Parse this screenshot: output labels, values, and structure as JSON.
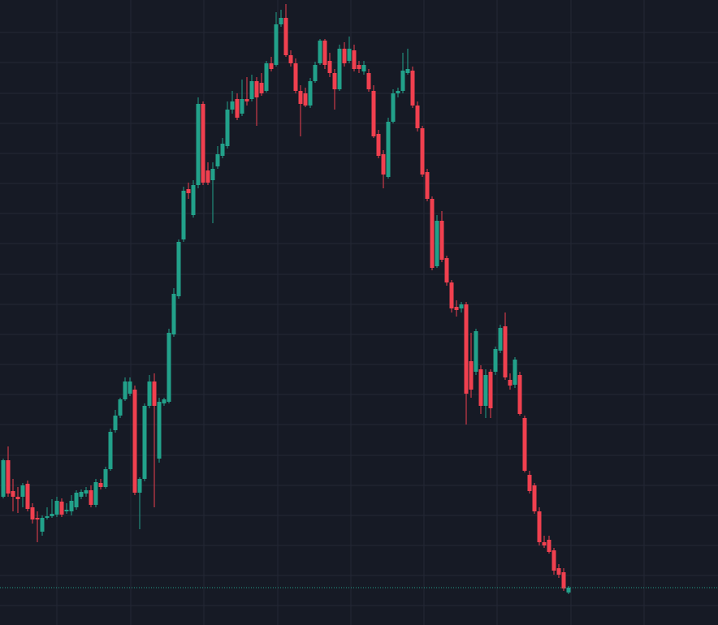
{
  "chart_data": {
    "type": "candlestick",
    "background": "#161a25",
    "grid_color": "#242835",
    "up_color": "#22a18a",
    "down_color": "#f0404f",
    "price_line_color": "#22a18a",
    "xlim": [
      0,
      884
    ],
    "ylim": [
      0,
      770
    ],
    "xticks": [
      70,
      161,
      251,
      342,
      432,
      522,
      612,
      703,
      793
    ],
    "yticks": [
      730,
      693,
      655,
      618,
      581,
      544,
      507,
      470,
      432,
      395,
      358,
      321,
      284,
      247,
      209,
      172,
      135,
      98,
      61,
      24
    ],
    "grid": true,
    "last_price": 46,
    "x": [
      4,
      10,
      16,
      22,
      28,
      34,
      40,
      46,
      52,
      58,
      64,
      70,
      76,
      82,
      88,
      94,
      100,
      106,
      112,
      118,
      124,
      130,
      136,
      142,
      148,
      154,
      160,
      166,
      172,
      178,
      184,
      190,
      196,
      202,
      208,
      214,
      220,
      226,
      232,
      238,
      244,
      250,
      256,
      262,
      268,
      274,
      280,
      286,
      292,
      298,
      304,
      310,
      316,
      322,
      328,
      334,
      340,
      346,
      352,
      358,
      364,
      370,
      376,
      382,
      388,
      394,
      400,
      406,
      412,
      418,
      424,
      430,
      436,
      442,
      448,
      454,
      460,
      466,
      472,
      478,
      484,
      490,
      496,
      502,
      508,
      514,
      520,
      526,
      532,
      538,
      544,
      550,
      556,
      562,
      568,
      574,
      580,
      586,
      592,
      598,
      604,
      610,
      616,
      622,
      628,
      634,
      640,
      646,
      652,
      658,
      664,
      670,
      676,
      682,
      688,
      694,
      700
    ],
    "open": [
      158,
      203,
      165,
      158,
      158,
      174,
      145,
      132,
      115,
      132,
      134,
      136,
      152,
      140,
      140,
      145,
      158,
      162,
      166,
      148,
      175,
      170,
      192,
      240,
      258,
      278,
      285,
      290,
      163,
      180,
      270,
      300,
      205,
      273,
      275,
      358,
      405,
      475,
      537,
      505,
      542,
      642,
      560,
      548,
      565,
      578,
      590,
      635,
      648,
      630,
      648,
      648,
      670,
      668,
      658,
      692,
      690,
      740,
      748,
      702,
      692,
      658,
      655,
      640,
      670,
      692,
      720,
      695,
      680,
      660,
      710,
      695,
      708,
      690,
      682,
      680,
      658,
      605,
      580,
      552,
      620,
      655,
      658,
      680,
      683,
      640,
      612,
      558,
      525,
      442,
      498,
      452,
      422,
      392,
      390,
      395,
      325,
      312,
      315,
      270,
      312,
      312,
      338,
      368,
      302,
      296,
      308,
      255,
      185,
      172,
      140,
      102,
      105,
      92,
      70,
      65,
      40
    ],
    "high": [
      205,
      220,
      180,
      170,
      175,
      178,
      150,
      140,
      135,
      145,
      155,
      158,
      156,
      150,
      160,
      166,
      167,
      170,
      172,
      180,
      180,
      195,
      242,
      265,
      280,
      305,
      305,
      295,
      182,
      273,
      308,
      310,
      280,
      280,
      365,
      415,
      475,
      540,
      545,
      548,
      650,
      645,
      570,
      570,
      590,
      600,
      645,
      658,
      655,
      672,
      675,
      678,
      675,
      680,
      695,
      700,
      755,
      758,
      765,
      708,
      698,
      665,
      662,
      674,
      694,
      722,
      722,
      705,
      685,
      715,
      718,
      725,
      715,
      695,
      695,
      685,
      665,
      610,
      585,
      625,
      660,
      662,
      705,
      710,
      688,
      645,
      615,
      562,
      528,
      505,
      510,
      455,
      425,
      400,
      398,
      398,
      360,
      365,
      320,
      315,
      315,
      343,
      370,
      385,
      310,
      330,
      312,
      258,
      190,
      175,
      145,
      110,
      110,
      95,
      75,
      70,
      48
    ],
    "low": [
      156,
      158,
      140,
      138,
      145,
      140,
      125,
      102,
      110,
      130,
      132,
      133,
      133,
      137,
      135,
      142,
      155,
      158,
      145,
      145,
      167,
      168,
      190,
      237,
      255,
      276,
      282,
      160,
      118,
      177,
      267,
      145,
      200,
      270,
      273,
      355,
      402,
      472,
      525,
      502,
      538,
      542,
      542,
      495,
      562,
      575,
      587,
      630,
      622,
      627,
      640,
      645,
      615,
      652,
      656,
      682,
      688,
      737,
      700,
      688,
      655,
      602,
      638,
      637,
      668,
      690,
      685,
      675,
      635,
      658,
      688,
      692,
      682,
      680,
      678,
      657,
      600,
      575,
      538,
      550,
      618,
      650,
      655,
      678,
      637,
      608,
      552,
      522,
      437,
      440,
      447,
      418,
      385,
      380,
      385,
      247,
      280,
      308,
      260,
      255,
      255,
      308,
      335,
      302,
      290,
      292,
      258,
      188,
      162,
      137,
      98,
      95,
      88,
      62,
      58,
      42,
      38
    ],
    "close": [
      203,
      162,
      158,
      155,
      172,
      143,
      130,
      130,
      132,
      134,
      137,
      153,
      136,
      142,
      153,
      163,
      164,
      166,
      148,
      176,
      170,
      192,
      238,
      258,
      278,
      300,
      300,
      163,
      180,
      270,
      300,
      270,
      275,
      278,
      360,
      408,
      472,
      535,
      532,
      542,
      642,
      545,
      545,
      562,
      580,
      593,
      635,
      645,
      625,
      648,
      645,
      670,
      650,
      655,
      692,
      685,
      740,
      748,
      702,
      692,
      658,
      642,
      640,
      670,
      690,
      720,
      690,
      680,
      660,
      710,
      692,
      710,
      685,
      685,
      690,
      660,
      602,
      578,
      555,
      620,
      655,
      658,
      683,
      685,
      640,
      612,
      555,
      525,
      440,
      498,
      450,
      422,
      390,
      388,
      395,
      285,
      290,
      362,
      270,
      308,
      267,
      340,
      366,
      305,
      295,
      327,
      260,
      190,
      165,
      140,
      102,
      98,
      90,
      67,
      62,
      45,
      46
    ]
  }
}
